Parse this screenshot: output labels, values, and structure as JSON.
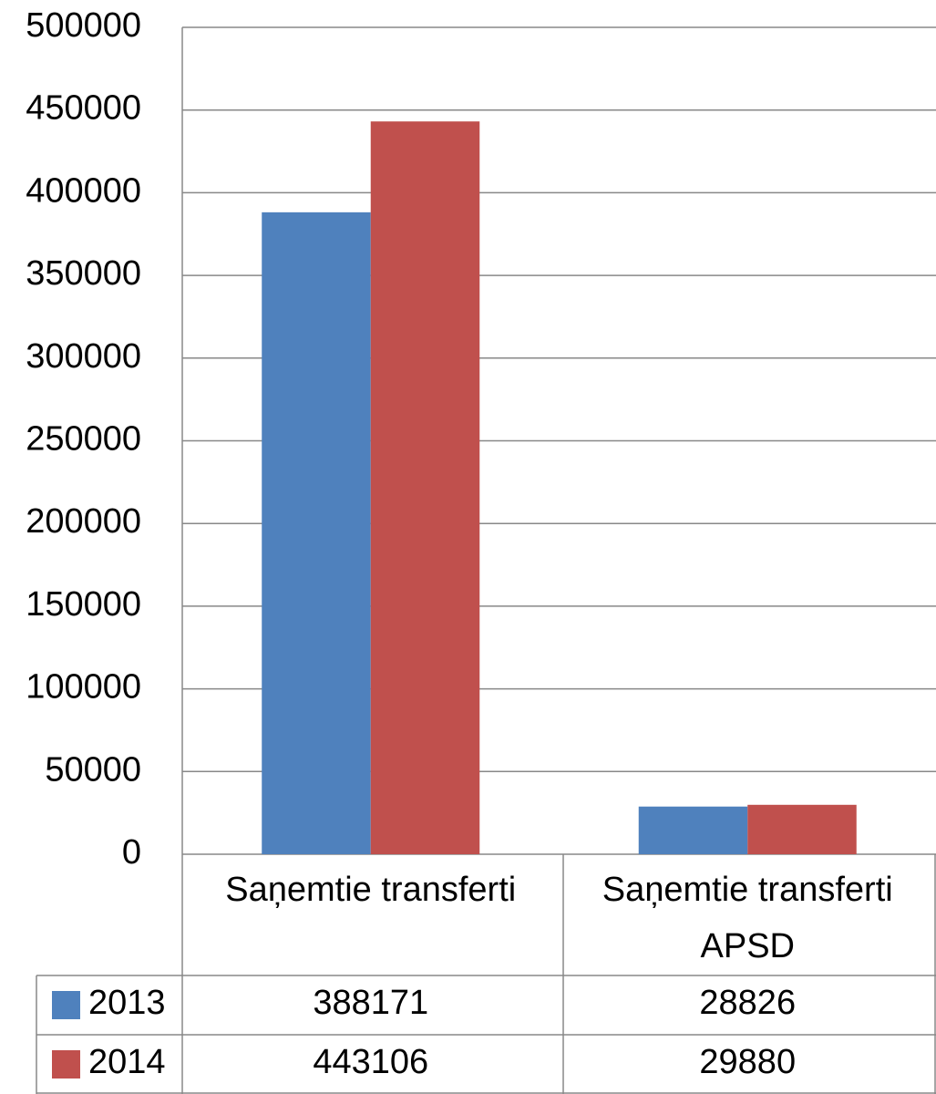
{
  "chart_data": {
    "type": "bar",
    "categories": [
      "Saņemtie transferti",
      "Saņemtie transferti APSD"
    ],
    "series": [
      {
        "name": "2013",
        "color": "#4f81bd",
        "values": [
          388171,
          28826
        ]
      },
      {
        "name": "2014",
        "color": "#c0504d",
        "values": [
          443106,
          29880
        ]
      }
    ],
    "ylim": [
      0,
      500000
    ],
    "yticks": [
      0,
      50000,
      100000,
      150000,
      200000,
      250000,
      300000,
      350000,
      400000,
      450000,
      500000
    ],
    "grid": true
  }
}
